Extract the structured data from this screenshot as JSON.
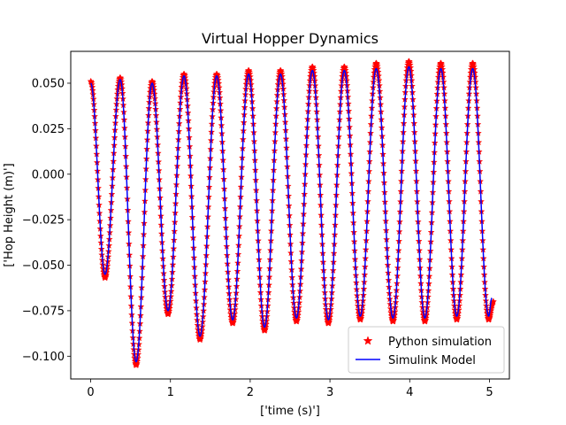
{
  "chart_data": {
    "type": "line",
    "title": "Virtual Hopper Dynamics",
    "xlabel": "['time (s)']",
    "ylabel": "['Hop Height (m)']",
    "xlim": [
      -0.25,
      5.25
    ],
    "ylim": [
      -0.1125,
      0.0675
    ],
    "xticks": [
      0,
      1,
      2,
      3,
      4,
      5
    ],
    "xtick_labels": [
      "0",
      "1",
      "2",
      "3",
      "4",
      "5"
    ],
    "yticks": [
      -0.1,
      -0.075,
      -0.05,
      -0.025,
      0.0,
      0.025,
      0.05
    ],
    "ytick_labels": [
      "−0.100",
      "−0.075",
      "−0.050",
      "−0.025",
      "0.000",
      "0.025",
      "0.050"
    ],
    "grid": false,
    "legend_position": "lower-right",
    "series": [
      {
        "name": "Python simulation",
        "style": "star-markers",
        "color": "#ff0000",
        "t_start": 0.0,
        "t_end": 5.05,
        "keypoints": [
          [
            0.0,
            0.051
          ],
          [
            0.18,
            -0.057
          ],
          [
            0.37,
            0.053
          ],
          [
            0.57,
            -0.105
          ],
          [
            0.77,
            0.051
          ],
          [
            0.97,
            -0.077
          ],
          [
            1.17,
            0.055
          ],
          [
            1.37,
            -0.091
          ],
          [
            1.58,
            0.055
          ],
          [
            1.78,
            -0.082
          ],
          [
            1.98,
            0.057
          ],
          [
            2.18,
            -0.086
          ],
          [
            2.38,
            0.057
          ],
          [
            2.58,
            -0.081
          ],
          [
            2.78,
            0.059
          ],
          [
            2.98,
            -0.082
          ],
          [
            3.18,
            0.059
          ],
          [
            3.38,
            -0.08
          ],
          [
            3.58,
            0.061
          ],
          [
            3.79,
            -0.081
          ],
          [
            3.99,
            0.062
          ],
          [
            4.19,
            -0.081
          ],
          [
            4.39,
            0.061
          ],
          [
            4.59,
            -0.08
          ],
          [
            4.79,
            0.061
          ],
          [
            4.99,
            -0.08
          ],
          [
            5.05,
            -0.07
          ]
        ]
      },
      {
        "name": "Simulink Model",
        "style": "line",
        "color": "#0000ff",
        "t_start": 0.0,
        "t_end": 5.03,
        "keypoints": [
          [
            0.0,
            0.05
          ],
          [
            0.18,
            -0.055
          ],
          [
            0.37,
            0.052
          ],
          [
            0.57,
            -0.103
          ],
          [
            0.77,
            0.05
          ],
          [
            0.97,
            -0.075
          ],
          [
            1.17,
            0.054
          ],
          [
            1.37,
            -0.089
          ],
          [
            1.58,
            0.054
          ],
          [
            1.78,
            -0.08
          ],
          [
            1.98,
            0.055
          ],
          [
            2.18,
            -0.084
          ],
          [
            2.38,
            0.055
          ],
          [
            2.58,
            -0.079
          ],
          [
            2.78,
            0.057
          ],
          [
            2.98,
            -0.08
          ],
          [
            3.18,
            0.057
          ],
          [
            3.38,
            -0.078
          ],
          [
            3.58,
            0.058
          ],
          [
            3.79,
            -0.079
          ],
          [
            3.99,
            0.059
          ],
          [
            4.19,
            -0.079
          ],
          [
            4.39,
            0.058
          ],
          [
            4.59,
            -0.078
          ],
          [
            4.79,
            0.058
          ],
          [
            4.99,
            -0.078
          ],
          [
            5.03,
            -0.068
          ]
        ]
      }
    ]
  },
  "legend": {
    "python_label": "Python simulation",
    "simulink_label": "Simulink Model"
  }
}
